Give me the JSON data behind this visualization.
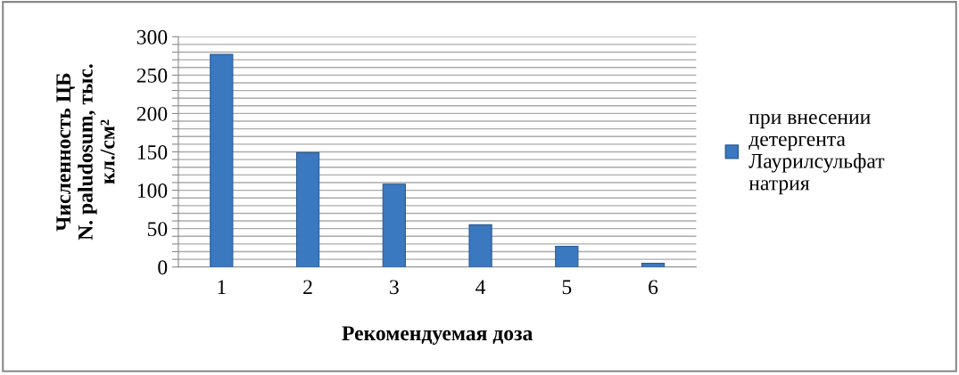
{
  "chart_data": {
    "type": "bar",
    "xlabel": "Рекомендуемая доза",
    "ylabel": "Численность ЦБ\nN. paludosum, тыс.\nкл./см²",
    "categories": [
      "1",
      "2",
      "3",
      "4",
      "5",
      "6"
    ],
    "series": [
      {
        "name": "при внесении\nдетергента\nЛаурилсульфат\nнатрия",
        "color": "#3a78c0",
        "values": [
          277,
          149,
          108,
          55,
          27,
          5
        ]
      }
    ],
    "ylim": [
      0,
      300
    ],
    "yticks": [
      0,
      {
        "value": 10,
        "label": null
      },
      {
        "value": 20,
        "label": null
      },
      {
        "value": 30,
        "label": null
      },
      {
        "value": 40,
        "label": null
      },
      50,
      {
        "value": 60,
        "label": null
      },
      {
        "value": 70,
        "label": null
      },
      {
        "value": 80,
        "label": null
      },
      {
        "value": 90,
        "label": null
      },
      100,
      {
        "value": 110,
        "label": null
      },
      {
        "value": 120,
        "label": null
      },
      {
        "value": 130,
        "label": null
      },
      {
        "value": 140,
        "label": null
      },
      150,
      {
        "value": 160,
        "label": null
      },
      {
        "value": 170,
        "label": null
      },
      {
        "value": 180,
        "label": null
      },
      {
        "value": 190,
        "label": null
      },
      200,
      {
        "value": 210,
        "label": null
      },
      {
        "value": 220,
        "label": null
      },
      {
        "value": 230,
        "label": null
      },
      {
        "value": 240,
        "label": null
      },
      250,
      {
        "value": 260,
        "label": null
      },
      {
        "value": 270,
        "label": null
      },
      {
        "value": 280,
        "label": null
      },
      {
        "value": 290,
        "label": null
      },
      300
    ],
    "grid": "y",
    "legend": "right"
  }
}
